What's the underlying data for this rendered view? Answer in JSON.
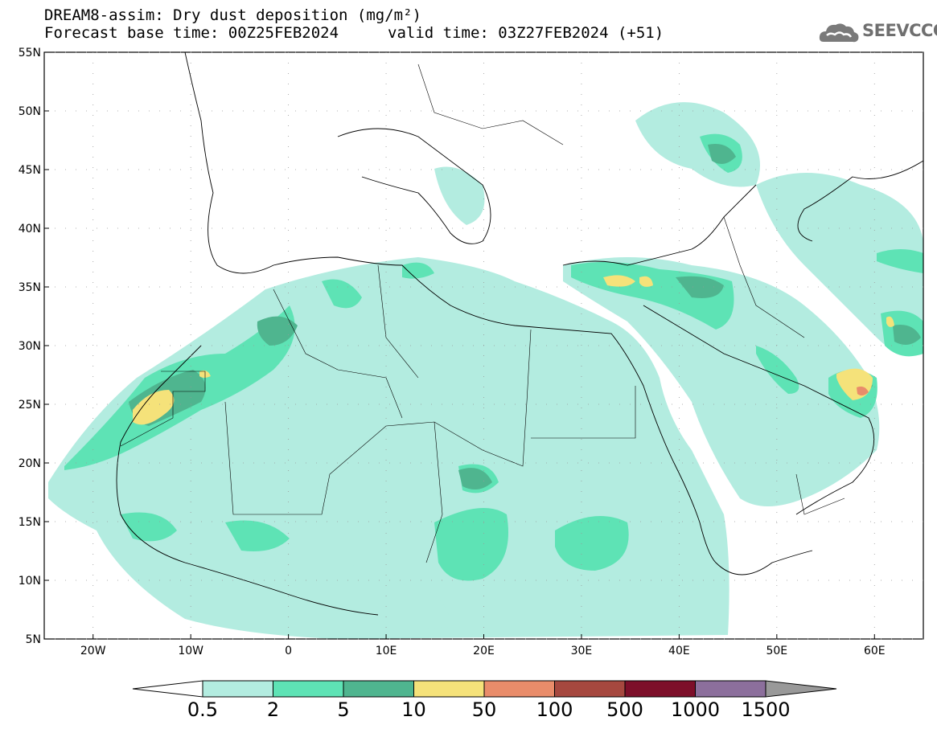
{
  "header": {
    "title_line1": "DREAM8-assim: Dry dust deposition (mg/m²)",
    "title_line2": "Forecast base time: 00Z25FEB2024",
    "valid_time": "valid time: 03Z27FEB2024 (+51)",
    "logo_text": "SEEVCCC"
  },
  "map": {
    "lon_range": [
      -25,
      65
    ],
    "lat_range": [
      5,
      55
    ],
    "lat_ticks": [
      "5N",
      "10N",
      "15N",
      "20N",
      "25N",
      "30N",
      "35N",
      "40N",
      "45N",
      "50N",
      "55N"
    ],
    "lon_ticks": [
      "20W",
      "10W",
      "0",
      "10E",
      "20E",
      "30E",
      "40E",
      "50E",
      "60E"
    ],
    "lat_values": [
      5,
      10,
      15,
      20,
      25,
      30,
      35,
      40,
      45,
      50,
      55
    ],
    "lon_values": [
      -20,
      -10,
      0,
      10,
      20,
      30,
      40,
      50,
      60
    ]
  },
  "colorbar": {
    "labels": [
      "0.5",
      "2",
      "5",
      "10",
      "50",
      "100",
      "500",
      "1000",
      "1500"
    ],
    "colors": [
      "#b3ece0",
      "#5ee3b5",
      "#4fb58f",
      "#f5e27a",
      "#e98c6a",
      "#a6483f",
      "#7d0f2a",
      "#8c6f9c"
    ],
    "under_color": "#ffffff",
    "over_color": "#999999"
  }
}
